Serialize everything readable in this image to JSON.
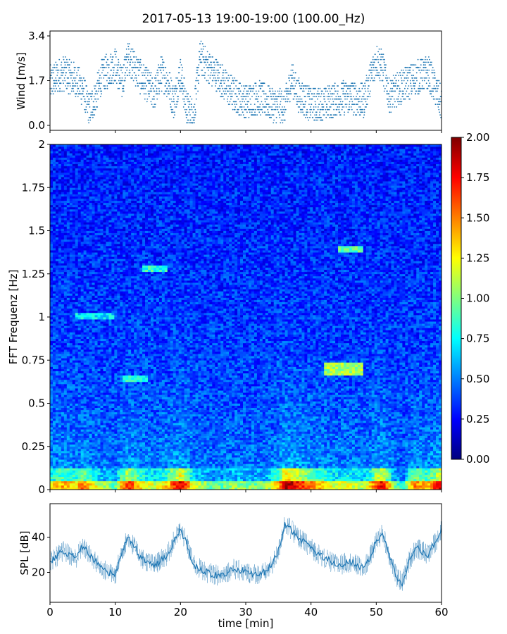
{
  "chart_data": [
    {
      "type": "scatter",
      "title": "2017-05-13 19:00-19:00 (100.00_Hz)",
      "ylabel": "Wind [m/s]",
      "ylim": [
        0.0,
        3.4
      ],
      "yticks": [
        "0.0",
        "1.7",
        "3.4"
      ],
      "xlim": [
        0,
        60
      ],
      "marker_color": "#1f77b4",
      "segments": [
        {
          "x": [
            0,
            2,
            4,
            5,
            6,
            7,
            8,
            10,
            11,
            12,
            14,
            16,
            17,
            18,
            19,
            20,
            21,
            22,
            23,
            24,
            26,
            28,
            30,
            32,
            34,
            36,
            37,
            38,
            40,
            42,
            44,
            46,
            48,
            50,
            51,
            52,
            54,
            56,
            58,
            60
          ],
          "y": [
            1.6,
            2.0,
            1.7,
            1.4,
            0.6,
            1.1,
            1.9,
            2.3,
            1.6,
            2.6,
            1.8,
            1.2,
            2.0,
            1.7,
            0.9,
            2.0,
            0.6,
            0.4,
            2.6,
            2.3,
            1.8,
            1.2,
            0.9,
            1.1,
            0.8,
            0.7,
            1.8,
            1.2,
            0.8,
            0.8,
            1.0,
            1.1,
            0.9,
            2.5,
            2.2,
            1.1,
            1.5,
            1.8,
            2.0,
            0.8
          ]
        }
      ]
    },
    {
      "type": "heatmap",
      "ylabel": "FFT Frequenz [Hz]",
      "xlim": [
        0,
        60
      ],
      "ylim": [
        0,
        2
      ],
      "yticks": [
        "0",
        "0.25",
        "0.5",
        "0.75",
        "1",
        "1.25",
        "1.5",
        "1.75",
        "2"
      ],
      "colormap": "jet",
      "colorbar": {
        "min": 0.0,
        "max": 2.0,
        "ticks": [
          "0.00",
          "0.25",
          "0.50",
          "0.75",
          "1.00",
          "1.25",
          "1.50",
          "1.75",
          "2.00"
        ]
      },
      "colors": [
        "#00007f",
        "#0000ff",
        "#007fff",
        "#00ffff",
        "#7fff7f",
        "#ffff00",
        "#ff7f00",
        "#ff0000",
        "#7f0000"
      ]
    },
    {
      "type": "line",
      "xlabel": "time [min]",
      "ylabel": "SPL [dB]",
      "xlim": [
        0,
        60
      ],
      "ylim": [
        3,
        59
      ],
      "yticks": [
        "20",
        "40"
      ],
      "xticks": [
        "0",
        "10",
        "20",
        "30",
        "40",
        "50",
        "60"
      ],
      "line_color": "#1f77b4",
      "series": [
        {
          "x": [
            0,
            2,
            4,
            5,
            6,
            8,
            10,
            11,
            12,
            14,
            16,
            18,
            19,
            20,
            21,
            22,
            24,
            26,
            28,
            30,
            32,
            33,
            34,
            35,
            36,
            37,
            38,
            40,
            42,
            44,
            46,
            48,
            49,
            50,
            51,
            52,
            53,
            54,
            55,
            56,
            58,
            60
          ],
          "y": [
            26,
            32,
            28,
            35,
            30,
            22,
            18,
            32,
            40,
            28,
            24,
            30,
            38,
            44,
            36,
            24,
            20,
            18,
            22,
            20,
            19,
            20,
            24,
            32,
            48,
            44,
            40,
            34,
            28,
            24,
            26,
            22,
            28,
            38,
            42,
            30,
            18,
            14,
            26,
            34,
            30,
            44
          ]
        }
      ]
    }
  ]
}
